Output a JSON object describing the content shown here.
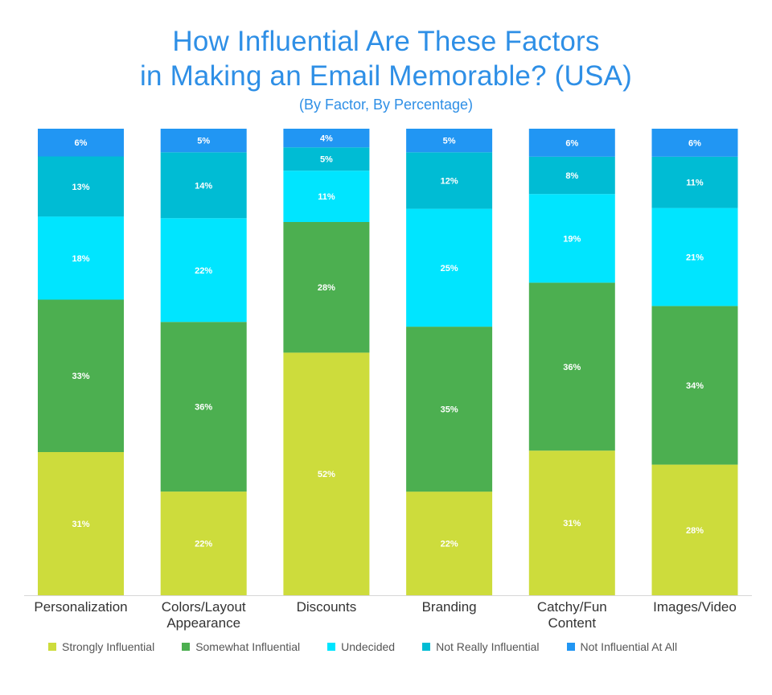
{
  "chart_data": {
    "type": "bar",
    "stacked": true,
    "title_lines": [
      "How Influential Are These Factors",
      "in Making an Email Memorable? (USA)"
    ],
    "subtitle": "(By Factor, By Percentage)",
    "categories": [
      [
        "Personalization"
      ],
      [
        "Colors/Layout",
        "Appearance"
      ],
      [
        "Discounts"
      ],
      [
        "Branding"
      ],
      [
        "Catchy/Fun",
        "Content"
      ],
      [
        "Images/Video"
      ]
    ],
    "series": [
      {
        "name": "Strongly Influential",
        "color": "#cddc3c",
        "values": [
          31,
          22,
          52,
          22,
          31,
          28
        ]
      },
      {
        "name": "Somewhat Influential",
        "color": "#4caf50",
        "values": [
          33,
          36,
          28,
          35,
          36,
          34
        ]
      },
      {
        "name": "Undecided",
        "color": "#00e5ff",
        "values": [
          18,
          22,
          11,
          25,
          19,
          21
        ]
      },
      {
        "name": "Not Really Influential",
        "color": "#00bcd4",
        "values": [
          13,
          14,
          5,
          12,
          8,
          11
        ]
      },
      {
        "name": "Not Influential At All",
        "color": "#2196f3",
        "values": [
          6,
          5,
          4,
          5,
          6,
          6
        ]
      }
    ],
    "value_suffix": "%",
    "legend_position": "bottom",
    "grid": false
  }
}
